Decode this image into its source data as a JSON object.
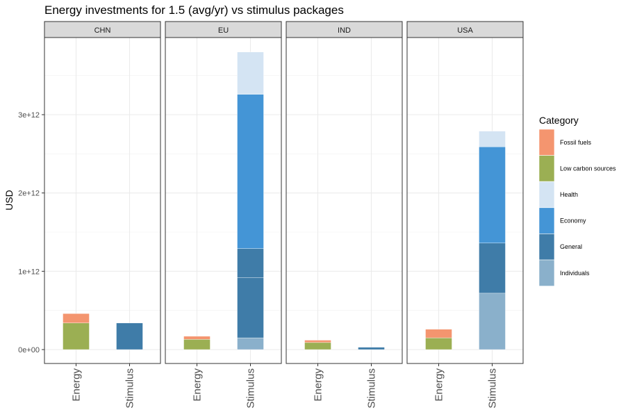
{
  "chart_data": {
    "type": "bar",
    "title": "Energy investments for 1.5 (avg/yr) vs stimulus packages",
    "ylabel": "USD",
    "xlabel": "",
    "ylim": [
      -180000000000,
      3900000000000
    ],
    "y_ticks": [
      {
        "value": 0,
        "label": "0e+00"
      },
      {
        "value": 1000000000000,
        "label": "1e+12"
      },
      {
        "value": 2000000000000,
        "label": "2e+12"
      },
      {
        "value": 3000000000000,
        "label": "3e+12"
      }
    ],
    "categories": [
      "Energy",
      "Stimulus"
    ],
    "grid": true,
    "legend": {
      "title": "Category",
      "position": "right",
      "items": [
        {
          "label": "Fossil fuels",
          "color": "#F4956F"
        },
        {
          "label": "Low carbon sources",
          "color": "#9BAF53"
        },
        {
          "label": "Health",
          "color": "#D4E4F3"
        },
        {
          "label": "Economy",
          "color": "#4495D6"
        },
        {
          "label": "General",
          "color": "#3F7CA8"
        },
        {
          "label": "Individuals",
          "color": "#8AB0CB"
        }
      ]
    },
    "facets": [
      {
        "name": "CHN",
        "bars": [
          {
            "category": "Energy",
            "segments": [
              {
                "series": "Low carbon sources",
                "value": 340000000000
              },
              {
                "series": "Fossil fuels",
                "value": 120000000000
              }
            ]
          },
          {
            "category": "Stimulus",
            "segments": [
              {
                "series": "General",
                "value": 340000000000
              }
            ]
          }
        ]
      },
      {
        "name": "EU",
        "bars": [
          {
            "category": "Energy",
            "segments": [
              {
                "series": "Low carbon sources",
                "value": 130000000000
              },
              {
                "series": "Fossil fuels",
                "value": 40000000000
              }
            ]
          },
          {
            "category": "Stimulus",
            "segments": [
              {
                "series": "Individuals",
                "value": 150000000000
              },
              {
                "series": "General",
                "value": 770000000000
              },
              {
                "series": "General",
                "value": 370000000000
              },
              {
                "series": "Economy",
                "value": 1970000000000
              },
              {
                "series": "Health",
                "value": 540000000000
              }
            ]
          }
        ]
      },
      {
        "name": "IND",
        "bars": [
          {
            "category": "Energy",
            "segments": [
              {
                "series": "Low carbon sources",
                "value": 90000000000
              },
              {
                "series": "Fossil fuels",
                "value": 30000000000
              }
            ]
          },
          {
            "category": "Stimulus",
            "segments": [
              {
                "series": "General",
                "value": 30000000000
              }
            ]
          }
        ]
      },
      {
        "name": "USA",
        "bars": [
          {
            "category": "Energy",
            "segments": [
              {
                "series": "Low carbon sources",
                "value": 150000000000
              },
              {
                "series": "Fossil fuels",
                "value": 110000000000
              }
            ]
          },
          {
            "category": "Stimulus",
            "segments": [
              {
                "series": "Individuals",
                "value": 720000000000
              },
              {
                "series": "General",
                "value": 640000000000
              },
              {
                "series": "Economy",
                "value": 1230000000000
              },
              {
                "series": "Health",
                "value": 200000000000
              }
            ]
          }
        ]
      }
    ]
  }
}
